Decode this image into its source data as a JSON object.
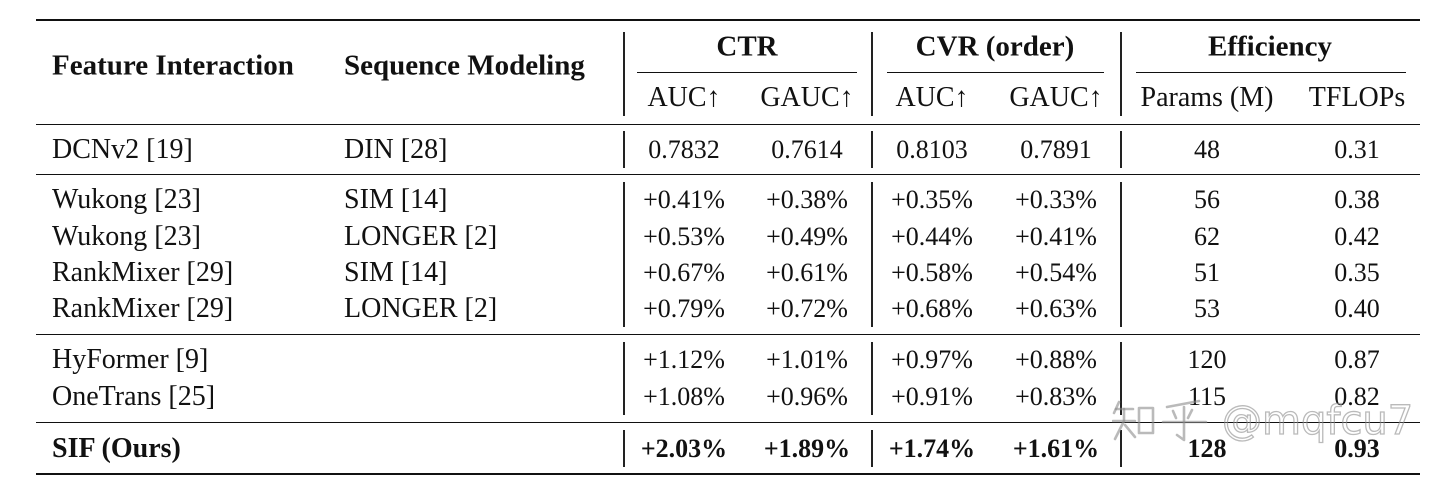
{
  "table": {
    "header": {
      "feature_interaction": "Feature Interaction",
      "sequence_modeling": "Sequence Modeling",
      "groups": {
        "ctr": "CTR",
        "cvr": "CVR (order)",
        "efficiency": "Efficiency"
      },
      "subheaders": {
        "ctr_auc": "AUC↑",
        "ctr_gauc": "GAUC↑",
        "cvr_auc": "AUC↑",
        "cvr_gauc": "GAUC↑",
        "params": "Params (M)",
        "tflops": "TFLOPs"
      }
    },
    "rows": [
      {
        "feature_interaction": "DCNv2 [19]",
        "sequence_modeling": "DIN [28]",
        "ctr_auc": "0.7832",
        "ctr_gauc": "0.7614",
        "cvr_auc": "0.8103",
        "cvr_gauc": "0.7891",
        "params": "48",
        "tflops": "0.31",
        "bold": false
      },
      {
        "feature_interaction": "Wukong [23]",
        "sequence_modeling": "SIM [14]",
        "ctr_auc": "+0.41%",
        "ctr_gauc": "+0.38%",
        "cvr_auc": "+0.35%",
        "cvr_gauc": "+0.33%",
        "params": "56",
        "tflops": "0.38",
        "bold": false
      },
      {
        "feature_interaction": "Wukong [23]",
        "sequence_modeling": "LONGER [2]",
        "ctr_auc": "+0.53%",
        "ctr_gauc": "+0.49%",
        "cvr_auc": "+0.44%",
        "cvr_gauc": "+0.41%",
        "params": "62",
        "tflops": "0.42",
        "bold": false
      },
      {
        "feature_interaction": "RankMixer [29]",
        "sequence_modeling": "SIM [14]",
        "ctr_auc": "+0.67%",
        "ctr_gauc": "+0.61%",
        "cvr_auc": "+0.58%",
        "cvr_gauc": "+0.54%",
        "params": "51",
        "tflops": "0.35",
        "bold": false
      },
      {
        "feature_interaction": "RankMixer [29]",
        "sequence_modeling": "LONGER [2]",
        "ctr_auc": "+0.79%",
        "ctr_gauc": "+0.72%",
        "cvr_auc": "+0.68%",
        "cvr_gauc": "+0.63%",
        "params": "53",
        "tflops": "0.40",
        "bold": false
      },
      {
        "feature_interaction": "HyFormer [9]",
        "sequence_modeling": "",
        "ctr_auc": "+1.12%",
        "ctr_gauc": "+1.01%",
        "cvr_auc": "+0.97%",
        "cvr_gauc": "+0.88%",
        "params": "120",
        "tflops": "0.87",
        "bold": false
      },
      {
        "feature_interaction": "OneTrans [25]",
        "sequence_modeling": "",
        "ctr_auc": "+1.08%",
        "ctr_gauc": "+0.96%",
        "cvr_auc": "+0.91%",
        "cvr_gauc": "+0.83%",
        "params": "115",
        "tflops": "0.82",
        "bold": false
      },
      {
        "feature_interaction": "SIF (Ours)",
        "sequence_modeling": "",
        "ctr_auc": "+2.03%",
        "ctr_gauc": "+1.89%",
        "cvr_auc": "+1.74%",
        "cvr_gauc": "+1.61%",
        "params": "128",
        "tflops": "0.93",
        "bold": true
      }
    ]
  },
  "watermark": {
    "logo_text": "知乎",
    "handle": "@mqfcu7"
  }
}
